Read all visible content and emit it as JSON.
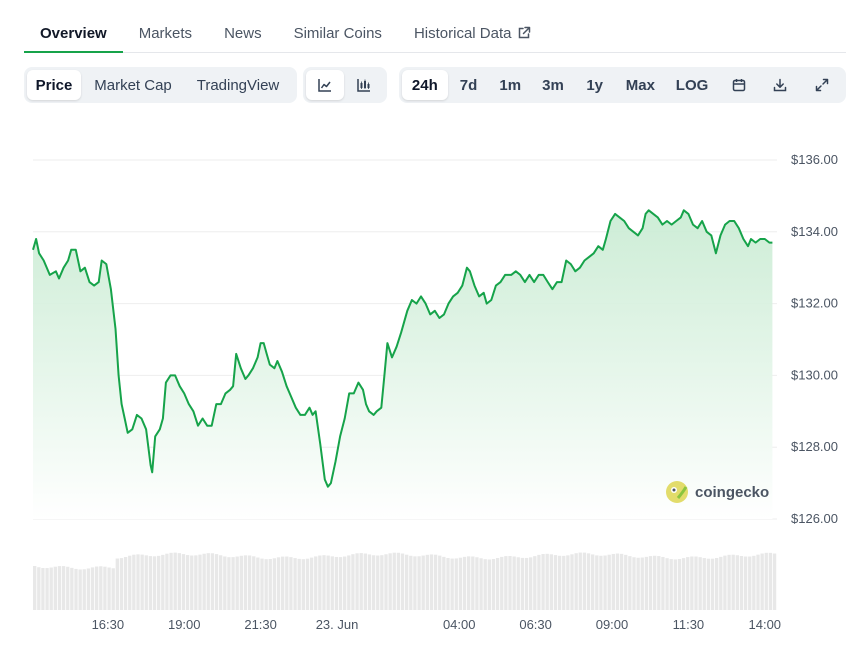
{
  "tabs": [
    {
      "label": "Overview",
      "active": true
    },
    {
      "label": "Markets"
    },
    {
      "label": "News"
    },
    {
      "label": "Similar Coins"
    },
    {
      "label": "Historical Data",
      "external": true
    }
  ],
  "toolbar": {
    "chart_modes": [
      "Price",
      "Market Cap",
      "TradingView"
    ],
    "chart_types": [
      {
        "icon": "line-chart-icon"
      },
      {
        "icon": "candlestick-chart-icon"
      }
    ],
    "ranges": [
      "24h",
      "7d",
      "1m",
      "3m",
      "1y",
      "Max",
      "LOG"
    ],
    "actions": [
      {
        "icon": "calendar-icon"
      },
      {
        "icon": "download-icon"
      },
      {
        "icon": "expand-icon"
      }
    ],
    "selected_mode": "Price",
    "selected_type": "line",
    "selected_range": "24h"
  },
  "colors": {
    "line": "#16a34a",
    "fill_top": "#c8ebd2",
    "fill_bottom": "#ffffff",
    "volume": "#e8e8e8",
    "grid": "#eeeeee"
  },
  "watermark": "coingecko",
  "chart_data": {
    "type": "line",
    "title": "",
    "xlabel": "",
    "ylabel": "",
    "ylim": [
      126,
      136
    ],
    "y_ticks": [
      "$136.00",
      "$134.00",
      "$132.00",
      "$130.00",
      "$128.00",
      "$126.00"
    ],
    "x_ticks": [
      "16:30",
      "19:00",
      "21:30",
      "23. Jun",
      "04:00",
      "06:30",
      "09:00",
      "11:30",
      "14:00"
    ],
    "x_tick_hours": [
      16.5,
      19,
      21.5,
      24,
      28,
      30.5,
      33,
      35.5,
      38
    ],
    "x_range_hours": [
      14.05,
      38.4
    ],
    "grid": true,
    "series": [
      {
        "values": [
          [
            14.05,
            133.5
          ],
          [
            14.15,
            133.8
          ],
          [
            14.25,
            133.4
          ],
          [
            14.4,
            133.2
          ],
          [
            14.6,
            132.8
          ],
          [
            14.8,
            132.9
          ],
          [
            14.9,
            132.7
          ],
          [
            15.05,
            133.0
          ],
          [
            15.2,
            133.2
          ],
          [
            15.3,
            133.5
          ],
          [
            15.45,
            133.5
          ],
          [
            15.6,
            132.9
          ],
          [
            15.75,
            133.0
          ],
          [
            15.9,
            132.6
          ],
          [
            16.05,
            132.5
          ],
          [
            16.2,
            132.6
          ],
          [
            16.3,
            133.2
          ],
          [
            16.45,
            133.1
          ],
          [
            16.6,
            132.4
          ],
          [
            16.75,
            131.3
          ],
          [
            16.85,
            130.0
          ],
          [
            16.95,
            129.2
          ],
          [
            17.05,
            128.8
          ],
          [
            17.15,
            128.4
          ],
          [
            17.3,
            128.5
          ],
          [
            17.45,
            128.9
          ],
          [
            17.6,
            128.8
          ],
          [
            17.75,
            128.5
          ],
          [
            17.9,
            127.5
          ],
          [
            17.95,
            127.3
          ],
          [
            18.05,
            128.3
          ],
          [
            18.2,
            128.5
          ],
          [
            18.3,
            128.8
          ],
          [
            18.4,
            129.8
          ],
          [
            18.55,
            130.0
          ],
          [
            18.7,
            130.0
          ],
          [
            18.85,
            129.7
          ],
          [
            19.0,
            129.5
          ],
          [
            19.15,
            129.2
          ],
          [
            19.3,
            129.0
          ],
          [
            19.45,
            128.6
          ],
          [
            19.6,
            128.8
          ],
          [
            19.75,
            128.6
          ],
          [
            19.9,
            128.6
          ],
          [
            20.05,
            129.2
          ],
          [
            20.2,
            129.2
          ],
          [
            20.35,
            129.5
          ],
          [
            20.5,
            129.6
          ],
          [
            20.6,
            129.7
          ],
          [
            20.7,
            130.6
          ],
          [
            20.85,
            130.2
          ],
          [
            21.0,
            129.9
          ],
          [
            21.1,
            130.0
          ],
          [
            21.25,
            130.2
          ],
          [
            21.4,
            130.5
          ],
          [
            21.5,
            130.9
          ],
          [
            21.6,
            130.9
          ],
          [
            21.7,
            130.6
          ],
          [
            21.8,
            130.3
          ],
          [
            21.95,
            130.2
          ],
          [
            22.05,
            130.4
          ],
          [
            22.2,
            130.1
          ],
          [
            22.35,
            129.7
          ],
          [
            22.5,
            129.4
          ],
          [
            22.65,
            129.1
          ],
          [
            22.8,
            128.9
          ],
          [
            22.95,
            128.9
          ],
          [
            23.1,
            129.1
          ],
          [
            23.2,
            128.9
          ],
          [
            23.3,
            129.0
          ],
          [
            23.45,
            128.1
          ],
          [
            23.6,
            127.1
          ],
          [
            23.7,
            126.9
          ],
          [
            23.8,
            127.0
          ],
          [
            23.95,
            127.6
          ],
          [
            24.1,
            128.3
          ],
          [
            24.25,
            128.8
          ],
          [
            24.4,
            129.5
          ],
          [
            24.55,
            129.5
          ],
          [
            24.7,
            129.8
          ],
          [
            24.85,
            129.6
          ],
          [
            24.95,
            129.2
          ],
          [
            25.05,
            129.0
          ],
          [
            25.2,
            128.9
          ],
          [
            25.3,
            129.0
          ],
          [
            25.45,
            129.1
          ],
          [
            25.55,
            130.0
          ],
          [
            25.65,
            130.9
          ],
          [
            25.8,
            130.5
          ],
          [
            25.95,
            130.8
          ],
          [
            26.1,
            131.2
          ],
          [
            26.3,
            131.8
          ],
          [
            26.45,
            132.1
          ],
          [
            26.6,
            132.0
          ],
          [
            26.75,
            132.2
          ],
          [
            26.9,
            132.0
          ],
          [
            27.05,
            131.7
          ],
          [
            27.2,
            131.8
          ],
          [
            27.35,
            131.6
          ],
          [
            27.5,
            131.7
          ],
          [
            27.65,
            132.0
          ],
          [
            27.8,
            132.2
          ],
          [
            27.95,
            132.3
          ],
          [
            28.1,
            132.5
          ],
          [
            28.25,
            133.0
          ],
          [
            28.35,
            132.9
          ],
          [
            28.5,
            132.5
          ],
          [
            28.65,
            132.2
          ],
          [
            28.8,
            132.3
          ],
          [
            28.9,
            132.0
          ],
          [
            29.05,
            132.1
          ],
          [
            29.2,
            132.5
          ],
          [
            29.35,
            132.6
          ],
          [
            29.5,
            132.8
          ],
          [
            29.7,
            132.8
          ],
          [
            29.85,
            132.9
          ],
          [
            30.0,
            132.8
          ],
          [
            30.15,
            132.6
          ],
          [
            30.3,
            132.8
          ],
          [
            30.45,
            132.6
          ],
          [
            30.6,
            132.8
          ],
          [
            30.75,
            132.8
          ],
          [
            30.9,
            132.6
          ],
          [
            31.05,
            132.4
          ],
          [
            31.2,
            132.6
          ],
          [
            31.35,
            132.6
          ],
          [
            31.5,
            133.2
          ],
          [
            31.65,
            133.1
          ],
          [
            31.8,
            132.9
          ],
          [
            31.95,
            133.0
          ],
          [
            32.1,
            133.2
          ],
          [
            32.25,
            133.3
          ],
          [
            32.4,
            133.4
          ],
          [
            32.55,
            133.6
          ],
          [
            32.7,
            133.5
          ],
          [
            32.8,
            133.8
          ],
          [
            32.95,
            134.3
          ],
          [
            33.1,
            134.5
          ],
          [
            33.25,
            134.4
          ],
          [
            33.4,
            134.3
          ],
          [
            33.55,
            134.1
          ],
          [
            33.7,
            134.0
          ],
          [
            33.85,
            133.9
          ],
          [
            34.0,
            134.1
          ],
          [
            34.1,
            134.5
          ],
          [
            34.2,
            134.6
          ],
          [
            34.35,
            134.5
          ],
          [
            34.5,
            134.4
          ],
          [
            34.65,
            134.2
          ],
          [
            34.8,
            134.3
          ],
          [
            34.95,
            134.2
          ],
          [
            35.1,
            134.3
          ],
          [
            35.25,
            134.4
          ],
          [
            35.35,
            134.6
          ],
          [
            35.5,
            134.5
          ],
          [
            35.65,
            134.2
          ],
          [
            35.8,
            134.1
          ],
          [
            35.95,
            134.3
          ],
          [
            36.1,
            134.0
          ],
          [
            36.25,
            133.9
          ],
          [
            36.4,
            133.4
          ],
          [
            36.55,
            133.9
          ],
          [
            36.7,
            134.2
          ],
          [
            36.85,
            134.3
          ],
          [
            37.0,
            134.3
          ],
          [
            37.15,
            134.1
          ],
          [
            37.3,
            133.8
          ],
          [
            37.45,
            133.6
          ],
          [
            37.55,
            133.8
          ],
          [
            37.7,
            133.7
          ],
          [
            37.85,
            133.8
          ],
          [
            38.0,
            133.8
          ],
          [
            38.15,
            133.7
          ],
          [
            38.25,
            133.7
          ]
        ]
      }
    ]
  }
}
